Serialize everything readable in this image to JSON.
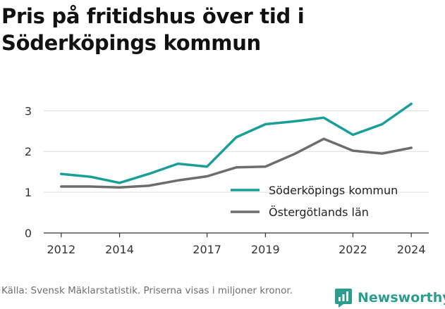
{
  "title": "Pris på fritidshus över tid i Söderköpings kommun",
  "footer": {
    "source": "Källa: Svensk Mäklarstatistik. Priserna visas i miljoner kronor."
  },
  "brand": {
    "name": "Newsworthy",
    "icon": "newsworthy-logo-icon",
    "color": "#2a9d8f"
  },
  "chart_data": {
    "type": "line",
    "x": [
      2012,
      2013,
      2014,
      2015,
      2016,
      2017,
      2018,
      2019,
      2020,
      2021,
      2022,
      2023,
      2024
    ],
    "x_ticks": [
      2012,
      2014,
      2017,
      2019,
      2022,
      2024
    ],
    "y_ticks": [
      0,
      1,
      2,
      3
    ],
    "ylim": [
      0,
      3.3
    ],
    "xlim": [
      2011.4,
      2024.6
    ],
    "grid": "horizontal",
    "legend_position": "inside-right",
    "series": [
      {
        "name": "Söderköpings kommun",
        "color": "#1a9f98",
        "values": [
          1.45,
          1.38,
          1.23,
          1.45,
          1.7,
          1.63,
          2.35,
          2.67,
          2.74,
          2.83,
          2.41,
          2.67,
          3.17
        ]
      },
      {
        "name": "Östergötlands län",
        "color": "#6d6d6d",
        "values": [
          1.14,
          1.14,
          1.12,
          1.16,
          1.29,
          1.39,
          1.61,
          1.63,
          1.94,
          2.31,
          2.02,
          1.95,
          2.09
        ]
      }
    ]
  }
}
